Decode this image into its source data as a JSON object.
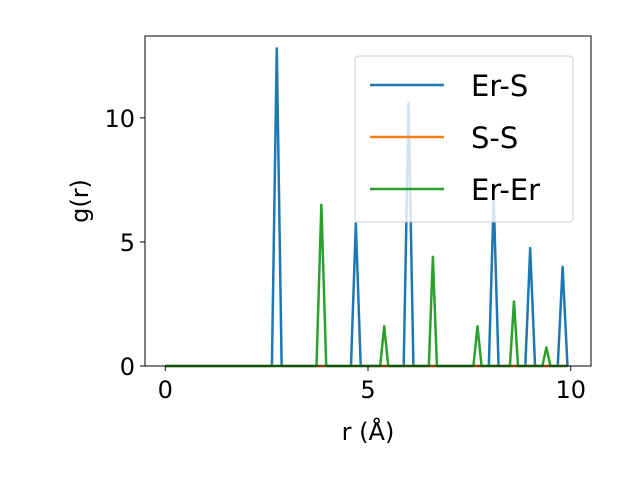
{
  "chart_data": {
    "type": "line",
    "title": "",
    "xlabel": "r (Å)",
    "ylabel": "g(r)",
    "xlim": [
      -0.5,
      10.5
    ],
    "ylim": [
      0,
      13.3
    ],
    "xticks": [
      0,
      5,
      10
    ],
    "yticks": [
      0,
      5,
      10
    ],
    "xtick_labels": [
      "0",
      "5",
      "10"
    ],
    "ytick_labels": [
      "0",
      "5",
      "10"
    ],
    "grid": false,
    "legend_position": "top-right",
    "series": [
      {
        "name": "Er-S",
        "color": "#1f77b4",
        "peaks": [
          {
            "r": 2.75,
            "g": 12.8,
            "w": 0.12
          },
          {
            "r": 4.7,
            "g": 5.75,
            "w": 0.12
          },
          {
            "r": 6.0,
            "g": 10.6,
            "w": 0.12
          },
          {
            "r": 8.1,
            "g": 6.75,
            "w": 0.12
          },
          {
            "r": 9.0,
            "g": 4.75,
            "w": 0.12
          },
          {
            "r": 9.8,
            "g": 4.0,
            "w": 0.12
          }
        ]
      },
      {
        "name": "S-S",
        "color": "#ff7f0e",
        "peaks": []
      },
      {
        "name": "Er-Er",
        "color": "#2ca02c",
        "peaks": [
          {
            "r": 3.85,
            "g": 6.5,
            "w": 0.12
          },
          {
            "r": 5.4,
            "g": 1.6,
            "w": 0.1
          },
          {
            "r": 6.6,
            "g": 4.4,
            "w": 0.1
          },
          {
            "r": 7.7,
            "g": 1.6,
            "w": 0.1
          },
          {
            "r": 8.6,
            "g": 2.6,
            "w": 0.1
          },
          {
            "r": 9.4,
            "g": 0.75,
            "w": 0.1
          }
        ]
      }
    ],
    "x_range": [
      0,
      9.9
    ]
  }
}
